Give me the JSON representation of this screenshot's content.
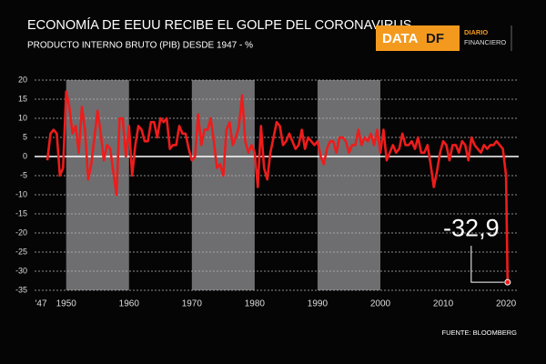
{
  "chart_data": {
    "type": "line",
    "title": "ECONOMÍA DE EEUU RECIBE EL GOLPE DEL CORONAVIRUS",
    "subtitle": "PRODUCTO INTERNO BRUTO (PIB) DESDE 1947 - %",
    "source": "FUENTE: BLOOMBERG",
    "xlim": [
      1947,
      2021
    ],
    "ylim": [
      -35,
      20
    ],
    "xticks": [
      {
        "value": 1947,
        "label": "'47"
      },
      1950,
      1960,
      1970,
      1980,
      1990,
      2000,
      2010,
      2020
    ],
    "yticks": [
      20,
      15,
      10,
      5,
      0,
      -5,
      -10,
      -15,
      -20,
      -25,
      -30,
      -35
    ],
    "grid": true,
    "shaded_periods": [
      [
        1950,
        1960
      ],
      [
        1970,
        1980
      ],
      [
        1990,
        2000
      ]
    ],
    "x": [
      1947,
      1947.5,
      1948,
      1948.5,
      1949,
      1949.5,
      1950,
      1950.5,
      1951,
      1951.5,
      1952,
      1952.5,
      1953,
      1953.5,
      1954,
      1954.5,
      1955,
      1955.5,
      1956,
      1956.5,
      1957,
      1957.5,
      1958,
      1958.5,
      1959,
      1959.5,
      1960,
      1960.5,
      1961,
      1961.5,
      1962,
      1962.5,
      1963,
      1963.5,
      1964,
      1964.5,
      1965,
      1965.5,
      1966,
      1966.5,
      1967,
      1967.5,
      1968,
      1968.5,
      1969,
      1969.5,
      1970,
      1970.5,
      1971,
      1971.5,
      1972,
      1972.5,
      1973,
      1973.5,
      1974,
      1974.5,
      1975,
      1975.5,
      1976,
      1976.5,
      1977,
      1977.5,
      1978,
      1978.5,
      1979,
      1979.5,
      1980,
      1980.5,
      1981,
      1981.5,
      1982,
      1982.5,
      1983,
      1983.5,
      1984,
      1984.5,
      1985,
      1985.5,
      1986,
      1986.5,
      1987,
      1987.5,
      1988,
      1988.5,
      1989,
      1989.5,
      1990,
      1990.5,
      1991,
      1991.5,
      1992,
      1992.5,
      1993,
      1993.5,
      1994,
      1994.5,
      1995,
      1995.5,
      1996,
      1996.5,
      1997,
      1997.5,
      1998,
      1998.5,
      1999,
      1999.5,
      2000,
      2000.5,
      2001,
      2001.5,
      2002,
      2002.5,
      2003,
      2003.5,
      2004,
      2004.5,
      2005,
      2005.5,
      2006,
      2006.5,
      2007,
      2007.5,
      2008,
      2008.5,
      2009,
      2009.5,
      2010,
      2010.5,
      2011,
      2011.5,
      2012,
      2012.5,
      2013,
      2013.5,
      2014,
      2014.5,
      2015,
      2015.5,
      2016,
      2016.5,
      2017,
      2017.5,
      2018,
      2018.5,
      2019,
      2019.5,
      2020,
      2020.25
    ],
    "series": [
      {
        "color": "#ee1c1c",
        "values": [
          -1,
          6,
          7,
          6,
          -5,
          -3,
          17,
          13,
          6,
          8,
          1,
          13,
          7,
          -6,
          -2,
          5,
          12,
          6,
          -1,
          3,
          2,
          -4,
          -10,
          10,
          10,
          0,
          8,
          -5,
          3,
          8,
          7,
          4,
          4,
          9,
          9,
          5,
          10,
          9,
          10,
          2,
          3,
          3,
          8,
          6,
          6,
          2,
          -1,
          0,
          11,
          3,
          7,
          7,
          10,
          4,
          -3,
          -2,
          -5,
          7,
          9,
          3,
          5,
          8,
          16,
          4,
          1,
          3,
          1,
          -8,
          8,
          -3,
          -6,
          1,
          5,
          9,
          8,
          3,
          4,
          6,
          4,
          2,
          3,
          7,
          2,
          5,
          4,
          3,
          4,
          0,
          -2,
          2,
          4,
          4,
          1,
          5,
          5,
          4,
          1,
          3,
          3,
          7,
          3,
          5,
          4,
          6,
          3,
          7,
          1,
          7,
          -1,
          1,
          3,
          1,
          2,
          6,
          3,
          3,
          4,
          2,
          5,
          1,
          1,
          3,
          -2,
          -8,
          -4,
          1,
          4,
          3,
          -1,
          3,
          3,
          1,
          4,
          3,
          -1,
          5,
          3,
          2,
          1,
          3,
          2,
          3,
          3,
          4,
          3,
          2,
          -5,
          -32.9
        ],
        "value_labels": [
          null,
          null,
          null,
          null,
          null,
          null,
          null,
          null,
          null,
          null,
          null,
          null,
          null,
          null,
          null,
          null,
          null,
          null,
          null,
          null,
          null,
          null,
          null,
          null,
          null,
          null,
          null,
          null,
          null,
          null,
          null,
          null,
          null,
          null,
          null,
          null,
          null,
          null,
          null,
          null,
          null,
          null,
          null,
          null,
          null,
          null,
          null,
          null,
          null,
          null,
          null,
          null,
          null,
          null,
          null,
          null,
          null,
          null,
          null,
          null,
          null,
          null,
          null,
          null,
          null,
          null,
          null,
          null,
          null,
          null,
          null,
          null,
          null,
          null,
          null,
          null,
          null,
          null,
          null,
          null,
          null,
          null,
          null,
          null,
          null,
          null,
          null,
          null,
          null,
          null,
          null,
          null,
          null,
          null,
          null,
          null,
          null,
          null,
          null,
          null,
          null,
          null,
          null,
          null,
          null,
          null,
          null,
          null,
          null,
          null,
          null,
          null,
          null,
          null,
          null,
          null,
          null,
          null,
          null,
          null,
          null,
          null,
          null,
          null,
          null,
          null,
          null,
          null,
          null,
          null,
          null,
          null,
          null,
          null,
          null,
          null,
          null,
          null,
          null,
          null,
          null,
          null,
          null,
          null,
          null,
          null,
          null,
          "-32,9"
        ]
      }
    ]
  },
  "logo": {
    "data": "DATA",
    "df": "DF",
    "diario": "DIARIO",
    "financiero": "FINANCIERO"
  }
}
